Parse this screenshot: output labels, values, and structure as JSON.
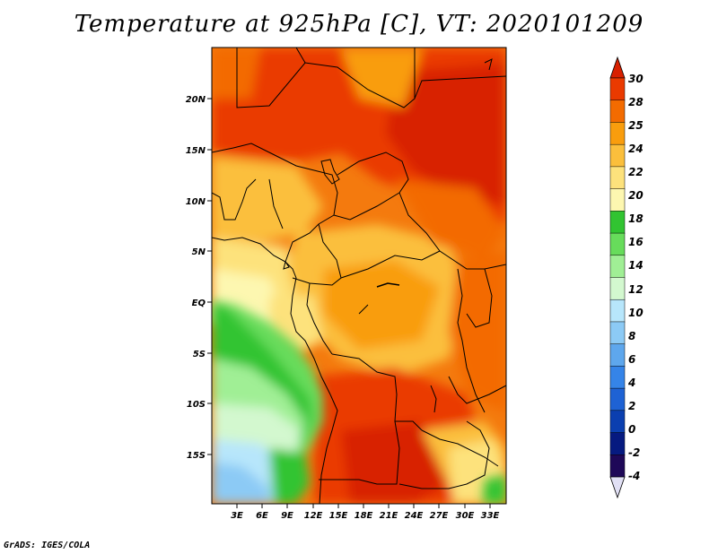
{
  "title": "Temperature at 925hPa [C], VT: 2020101209",
  "credit": "GrADS: IGES/COLA",
  "map": {
    "lat_ticks": [
      "20N",
      "15N",
      "10N",
      "5N",
      "EQ",
      "5S",
      "10S",
      "15S"
    ],
    "lon_ticks": [
      "3E",
      "6E",
      "9E",
      "12E",
      "15E",
      "18E",
      "21E",
      "24E",
      "27E",
      "30E",
      "33E"
    ]
  },
  "colorbar": {
    "labels": [
      "30",
      "28",
      "25",
      "24",
      "22",
      "20",
      "18",
      "16",
      "14",
      "12",
      "10",
      "8",
      "6",
      "4",
      "2",
      "0",
      "-2",
      "-4"
    ],
    "colors": [
      "#d82000",
      "#ea3a00",
      "#f36b00",
      "#f99d0d",
      "#fbbf3c",
      "#fde27c",
      "#fdf7b0",
      "#31c431",
      "#67dc5b",
      "#a0ef95",
      "#d3f8cf",
      "#b7e6fb",
      "#8ccaf5",
      "#5ea7ed",
      "#3584e8",
      "#1e62d4",
      "#0b3fb0",
      "#061a80",
      "#1e0858",
      "#e1e0f5"
    ]
  }
}
